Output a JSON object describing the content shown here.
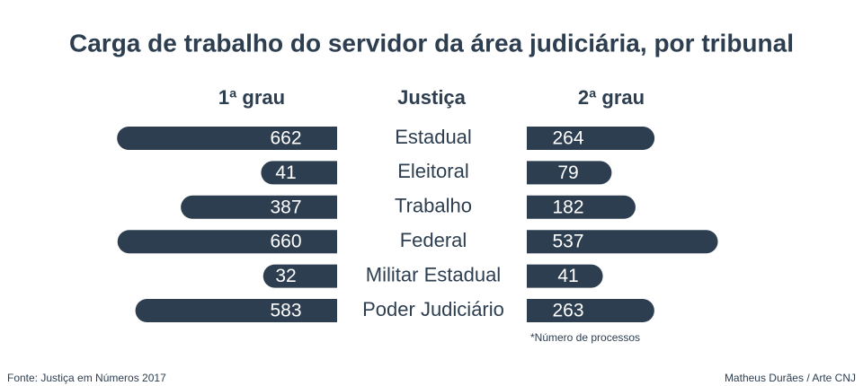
{
  "chart_data": {
    "type": "butterfly",
    "title": "Carga de trabalho do servidor da área judiciária, por tribunal",
    "category_header": "Justiça",
    "categories": [
      "Estadual",
      "Eleitoral",
      "Trabalho",
      "Federal",
      "Militar Estadual",
      "Poder Judiciário"
    ],
    "series": [
      {
        "name": "1ª grau",
        "color": "#2d3e50",
        "values": [
          662,
          41,
          387,
          660,
          32,
          583
        ]
      },
      {
        "name": "2ª grau",
        "color": "#2d3e50",
        "values": [
          264,
          79,
          182,
          537,
          41,
          263
        ]
      }
    ],
    "note": "*Número de processos",
    "source": "Fonte: Justiça em Números 2017",
    "credit": "Matheus Durães / Arte CNJ"
  }
}
